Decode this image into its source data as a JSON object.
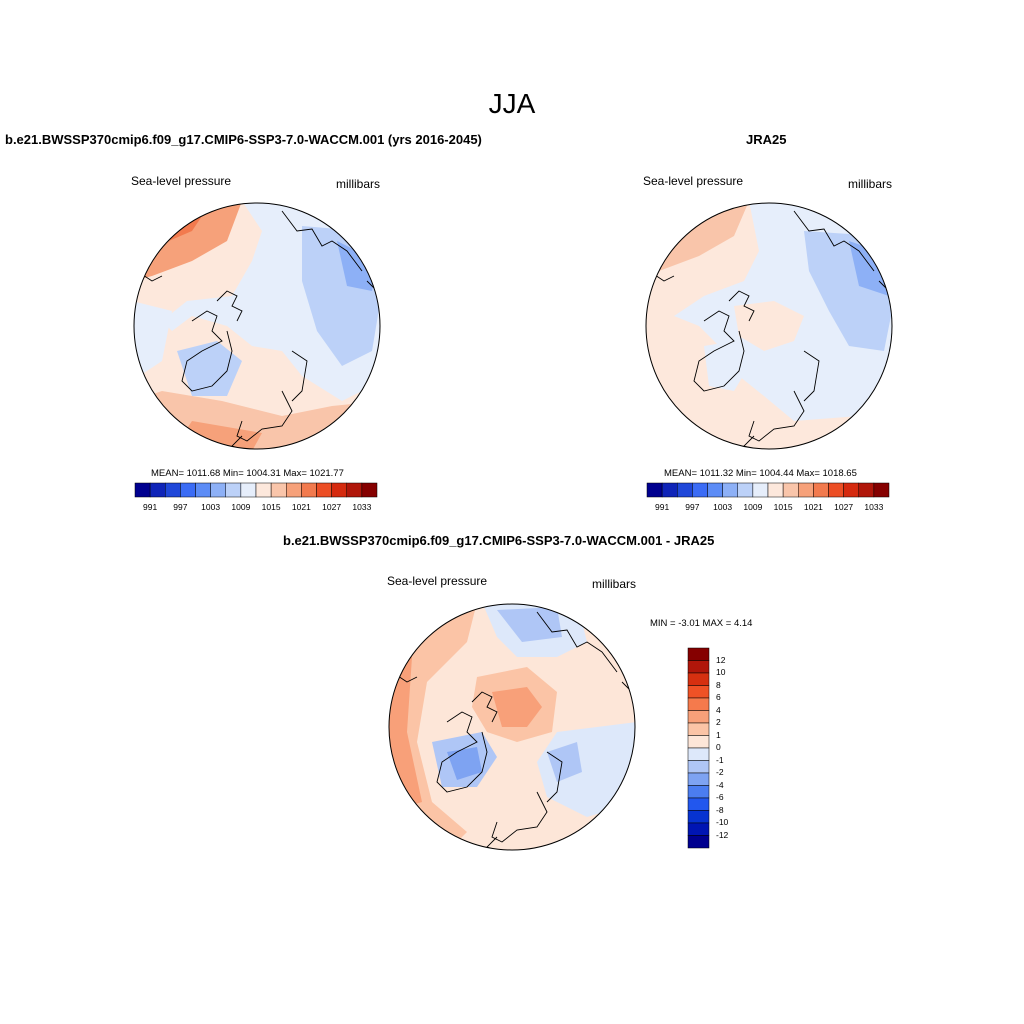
{
  "title": "JJA",
  "colors": {
    "land_outline": "#000000",
    "ocean_frame": "#000000",
    "palette_sequential": [
      "#00008f",
      "#0f24b8",
      "#1f47d9",
      "#3b6cf5",
      "#5c8cf6",
      "#8db0f6",
      "#bcd1f8",
      "#e6eefb",
      "#fde8dc",
      "#f9c5aa",
      "#f6a17a",
      "#f27a4e",
      "#ec4e25",
      "#d52a0f",
      "#b0160a",
      "#850000"
    ],
    "palette_difference": [
      "#00008f",
      "#0015b3",
      "#0733d1",
      "#2257ee",
      "#4b7df0",
      "#7ea3f2",
      "#afc6f6",
      "#dde8fa",
      "#fde6d8",
      "#fbc4a6",
      "#f8a079",
      "#f57a4c",
      "#ef5226",
      "#d63010",
      "#b0160a",
      "#850000"
    ]
  },
  "panels": {
    "model": {
      "title": "b.e21.BWSSP370cmip6.f09_g17.CMIP6-SSP3-7.0-WACCM.001 (yrs 2016-2045)",
      "variable": "Sea-level pressure",
      "units": "millibars",
      "stats": "MEAN= 1011.68  Min= 1004.31  Max= 1021.77",
      "colorbar_labels": [
        "991",
        "997",
        "1003",
        "1009",
        "1015",
        "1021",
        "1027",
        "1033"
      ]
    },
    "obs": {
      "title": "JRA25",
      "variable": "Sea-level pressure",
      "units": "millibars",
      "stats": "MEAN= 1011.32  Min= 1004.44  Max= 1018.65",
      "colorbar_labels": [
        "991",
        "997",
        "1003",
        "1009",
        "1015",
        "1021",
        "1027",
        "1033"
      ]
    },
    "diff": {
      "title": "b.e21.BWSSP370cmip6.f09_g17.CMIP6-SSP3-7.0-WACCM.001 - JRA25",
      "variable": "Sea-level pressure",
      "units": "millibars",
      "stats": "MIN =  -3.01 MAX =   4.14",
      "colorbar_labels": [
        "12",
        "10",
        "8",
        "6",
        "4",
        "2",
        "1",
        "0",
        "-1",
        "-2",
        "-4",
        "-6",
        "-8",
        "-10",
        "-12"
      ]
    }
  }
}
